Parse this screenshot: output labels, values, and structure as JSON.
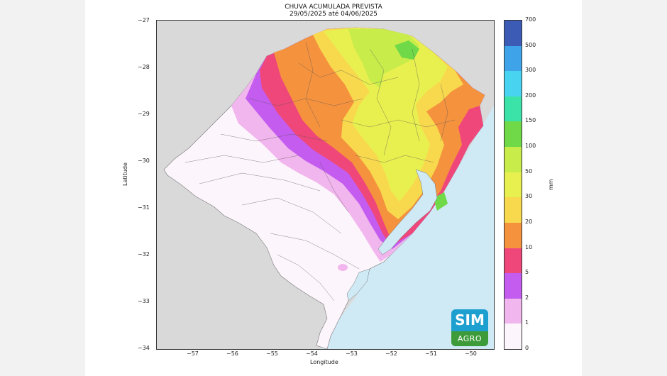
{
  "title": {
    "line1": "CHUVA ACUMULADA PREVISTA",
    "line2": "29/05/2025 até 04/06/2025"
  },
  "axes": {
    "xlabel": "Longitude",
    "ylabel": "Latitude",
    "x_ticks": [
      "−57",
      "−56",
      "−55",
      "−54",
      "−53",
      "−52",
      "−51",
      "−50"
    ],
    "y_ticks": [
      "−27",
      "−28",
      "−29",
      "−30",
      "−31",
      "−32",
      "−33",
      "−34"
    ]
  },
  "colorbar": {
    "unit": "mm",
    "levels": [
      "0",
      "1",
      "2",
      "5",
      "10",
      "20",
      "30",
      "50",
      "100",
      "150",
      "200",
      "300",
      "500",
      "700"
    ],
    "colors": [
      "#fdf5fc",
      "#f2b6ee",
      "#c45cf0",
      "#f0477a",
      "#f5923e",
      "#f8d94d",
      "#e8f04f",
      "#c8ec4a",
      "#6fd948",
      "#3ce3a9",
      "#48d4f0",
      "#3ea3e8",
      "#3b5bb4"
    ]
  },
  "logo": {
    "line1": "SIM",
    "line2": "AGRO"
  },
  "colors": {
    "ocean": "#cfe9f5",
    "neighbor_land": "#d9d9d9"
  }
}
